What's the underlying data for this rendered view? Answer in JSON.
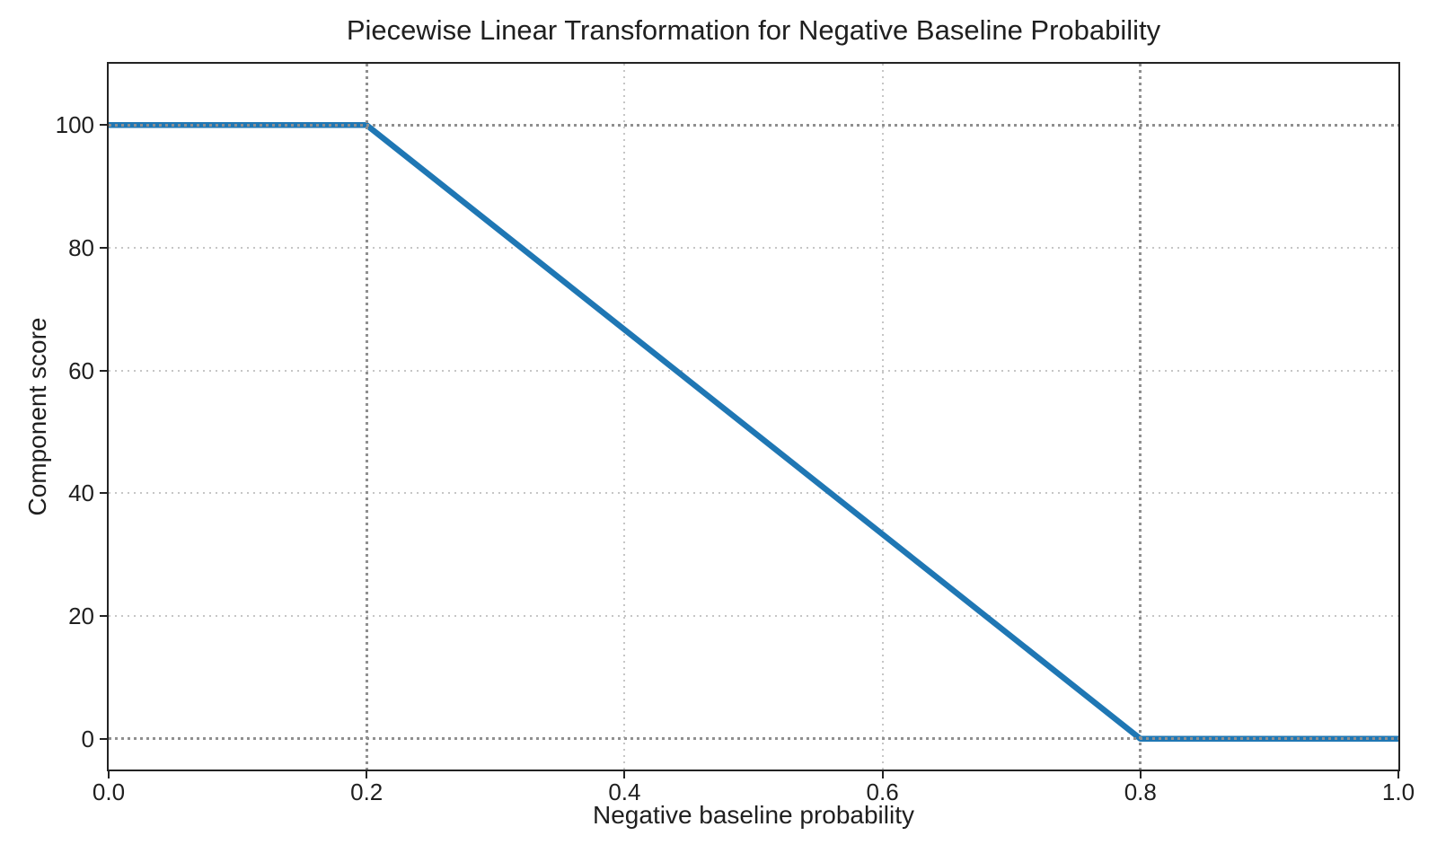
{
  "chart_data": {
    "type": "line",
    "title": "Piecewise Linear Transformation for Negative Baseline Probability",
    "xlabel": "Negative baseline probability",
    "ylabel": "Component score",
    "xlim": [
      0,
      1
    ],
    "ylim": [
      -5,
      110
    ],
    "grid": true,
    "grid_style": "dotted",
    "legend": false,
    "series": [
      {
        "name": "component_score",
        "color": "#1f77b4",
        "line_width": 6.5,
        "points": [
          [
            0.0,
            100
          ],
          [
            0.2,
            100
          ],
          [
            0.8,
            0
          ],
          [
            1.0,
            0
          ]
        ],
        "description": "Flat at 100 for x <= 0.2, linear decline from (0.2, 100) to (0.8, 0), flat at 0 for x >= 0.8"
      }
    ],
    "xticks": {
      "values": [
        0.0,
        0.2,
        0.4,
        0.6,
        0.8,
        1.0
      ],
      "labels": [
        "0.0",
        "0.2",
        "0.4",
        "0.6",
        "0.8",
        "1.0"
      ]
    },
    "yticks": {
      "values": [
        0,
        20,
        40,
        60,
        80,
        100
      ],
      "labels": [
        "0",
        "20",
        "40",
        "60",
        "80",
        "100"
      ]
    },
    "reference_lines": {
      "x": [
        0.2,
        0.8
      ],
      "y": [
        0,
        100
      ],
      "style": "dotted",
      "color": "#8f8f8f"
    },
    "colors": {
      "line": "#1f77b4",
      "grid": "#c6c6c6",
      "reference": "#8f8f8f",
      "spine": "#232323",
      "text": "#1f1f1f"
    }
  }
}
